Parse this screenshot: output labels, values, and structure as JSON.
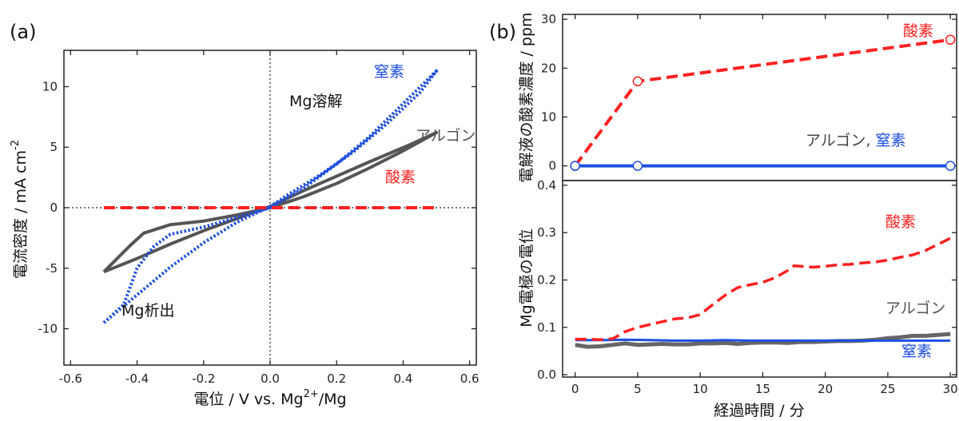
{
  "panel_a_label": "(a)",
  "panel_b_label": "(b)",
  "chart_data": [
    {
      "id": "cv",
      "type": "line",
      "xlabel": "電位 / V vs. Mg",
      "xlabel_sup": "2+",
      "xlabel_tail": "/Mg",
      "ylabel": "電流密度 / mA cm",
      "ylabel_sup": "-2",
      "xlim": [
        -0.62,
        0.62
      ],
      "ylim": [
        -13,
        13
      ],
      "xticks": [
        -0.6,
        -0.4,
        -0.2,
        0.0,
        0.2,
        0.4,
        0.6
      ],
      "xtick_labels": [
        "-0.6",
        "-0.4",
        "-0.2",
        "0.0",
        "0.2",
        "0.4",
        "0.6"
      ],
      "yticks": [
        -10,
        -5,
        0,
        5,
        10
      ],
      "ytick_labels": [
        "-10",
        "-5",
        "0",
        "5",
        "10"
      ],
      "annotations": {
        "dissolution": "Mg溶解",
        "deposition": "Mg析出"
      },
      "series": [
        {
          "name": "アルゴン",
          "color": "#555555",
          "style": "solid",
          "x": [
            -0.5,
            -0.42,
            -0.38,
            -0.3,
            -0.2,
            -0.1,
            0.0,
            0.1,
            0.2,
            0.3,
            0.4,
            0.5,
            0.42,
            0.3,
            0.2,
            0.1,
            0.0,
            -0.1,
            -0.2,
            -0.3,
            -0.4,
            -0.5
          ],
          "y": [
            -5.3,
            -3.1,
            -2.1,
            -1.4,
            -1.1,
            -0.6,
            0.0,
            0.9,
            2.0,
            3.3,
            4.7,
            6.2,
            5.2,
            3.8,
            2.6,
            1.4,
            0.1,
            -0.9,
            -1.9,
            -3.0,
            -4.2,
            -5.3
          ]
        },
        {
          "name": "窒素",
          "color": "#1f4fe0",
          "style": "dotted",
          "x": [
            -0.5,
            -0.44,
            -0.4,
            -0.35,
            -0.3,
            -0.2,
            -0.1,
            0.0,
            0.1,
            0.2,
            0.3,
            0.4,
            0.5,
            0.45,
            0.35,
            0.25,
            0.15,
            0.05,
            0.0,
            -0.1,
            -0.2,
            -0.3,
            -0.4,
            -0.5
          ],
          "y": [
            -9.5,
            -8.0,
            -5.0,
            -3.2,
            -2.2,
            -1.6,
            -0.8,
            0.0,
            1.6,
            3.6,
            5.9,
            8.6,
            11.3,
            9.5,
            6.9,
            4.6,
            2.7,
            1.0,
            0.1,
            -1.2,
            -2.9,
            -4.9,
            -7.2,
            -9.5
          ]
        },
        {
          "name": "酸素",
          "color": "#ff2020",
          "style": "dashed",
          "x": [
            -0.5,
            0.5
          ],
          "y": [
            0.0,
            0.0
          ]
        }
      ],
      "legend_labels": {
        "n2": "窒素",
        "ar": "アルゴン",
        "o2": "酸素"
      }
    },
    {
      "id": "oxygen",
      "type": "line",
      "ylabel": "電解液の酸素濃度 / ppm",
      "xlim": [
        -1,
        30.5
      ],
      "ylim": [
        -3,
        31
      ],
      "yticks": [
        0,
        10,
        20,
        30
      ],
      "ytick_labels": [
        "0",
        "10",
        "20",
        "30"
      ],
      "series": [
        {
          "name": "酸素",
          "color": "#ff2020",
          "style": "dashed",
          "x": [
            0,
            5,
            30
          ],
          "y": [
            0,
            17.3,
            25.8
          ]
        },
        {
          "name": "アルゴン, 窒素",
          "color": "#1f4fe0",
          "style": "solid",
          "x": [
            0,
            5,
            30
          ],
          "y": [
            0,
            0,
            0
          ]
        }
      ],
      "legend_labels": {
        "o2": "酸素",
        "ar_prefix": "アルゴン,",
        "n2": "窒素"
      }
    },
    {
      "id": "potential",
      "type": "line",
      "xlabel": "経過時間 / 分",
      "ylabel": "Mg電極の電位",
      "xlim": [
        -1,
        30.5
      ],
      "ylim": [
        -0.005,
        0.41
      ],
      "xticks": [
        0,
        5,
        10,
        15,
        20,
        25,
        30
      ],
      "xtick_labels": [
        "0",
        "5",
        "10",
        "15",
        "20",
        "25",
        "30"
      ],
      "yticks": [
        0.0,
        0.1,
        0.2,
        0.3,
        0.4
      ],
      "ytick_labels": [
        "0.0",
        "0.1",
        "0.2",
        "0.3",
        "0.4"
      ],
      "series": [
        {
          "name": "酸素",
          "color": "#ff2020",
          "style": "dashed",
          "x": [
            0,
            1,
            2,
            3,
            3.5,
            4,
            5,
            6,
            7,
            8,
            9,
            10,
            11,
            12,
            13,
            14,
            15,
            16,
            17,
            17.5,
            18,
            19,
            20,
            21,
            22,
            23,
            24,
            25,
            26,
            27,
            28,
            29,
            30
          ],
          "y": [
            0.075,
            0.075,
            0.074,
            0.076,
            0.083,
            0.091,
            0.1,
            0.106,
            0.112,
            0.118,
            0.12,
            0.127,
            0.148,
            0.168,
            0.184,
            0.19,
            0.195,
            0.205,
            0.22,
            0.23,
            0.229,
            0.227,
            0.229,
            0.232,
            0.233,
            0.236,
            0.238,
            0.242,
            0.248,
            0.253,
            0.262,
            0.275,
            0.288
          ]
        },
        {
          "name": "アルゴン",
          "color": "#666666",
          "style": "solid",
          "x": [
            0,
            1,
            2,
            3,
            4,
            5,
            6,
            7,
            8,
            9,
            10,
            11,
            12,
            13,
            14,
            15,
            16,
            17,
            18,
            19,
            20,
            21,
            22,
            23,
            24,
            25,
            26,
            27,
            28,
            29,
            30
          ],
          "y": [
            0.063,
            0.059,
            0.06,
            0.063,
            0.066,
            0.063,
            0.064,
            0.065,
            0.064,
            0.064,
            0.066,
            0.066,
            0.067,
            0.065,
            0.067,
            0.068,
            0.068,
            0.067,
            0.069,
            0.069,
            0.07,
            0.071,
            0.071,
            0.072,
            0.074,
            0.077,
            0.079,
            0.082,
            0.082,
            0.084,
            0.086
          ]
        },
        {
          "name": "窒素",
          "color": "#1f4fe0",
          "style": "solid",
          "x": [
            0,
            2,
            4,
            6,
            8,
            10,
            12,
            14,
            16,
            18,
            20,
            22,
            24,
            26,
            28,
            30
          ],
          "y": [
            0.073,
            0.073,
            0.074,
            0.073,
            0.072,
            0.072,
            0.073,
            0.072,
            0.072,
            0.072,
            0.072,
            0.072,
            0.072,
            0.072,
            0.072,
            0.072
          ]
        }
      ],
      "legend_labels": {
        "o2": "酸素",
        "ar": "アルゴン",
        "n2": "窒素"
      }
    }
  ]
}
